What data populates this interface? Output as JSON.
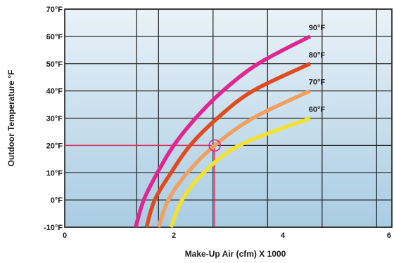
{
  "chart_data": {
    "type": "line",
    "title": "",
    "xlabel": "Make-Up Air (cfm) X 1000",
    "ylabel": "Outdoor Temperature °F",
    "xlim": [
      0,
      6
    ],
    "ylim": [
      -10,
      70
    ],
    "x_ticks": [
      0,
      2,
      4,
      6
    ],
    "x_tick_labels": [
      "0",
      "2",
      "4",
      "6"
    ],
    "x_minor_gridlines": [
      1.32,
      1.72,
      2.72,
      3.72,
      4.72,
      5.72
    ],
    "y_ticks": [
      -10,
      0,
      10,
      20,
      30,
      40,
      50,
      60,
      70
    ],
    "y_tick_labels": [
      "-10°F",
      "0°F",
      "10°F",
      "20°F",
      "30°F",
      "40°F",
      "50°F",
      "60°F",
      "70°F"
    ],
    "grid": true,
    "background": {
      "top": "#e9f2f8",
      "bottom": "#a9cce3"
    },
    "series": [
      {
        "name": "90°F",
        "color": "#e0268f",
        "points": [
          [
            1.3,
            -10
          ],
          [
            1.45,
            0
          ],
          [
            1.7,
            10
          ],
          [
            2.0,
            20
          ],
          [
            2.4,
            30
          ],
          [
            2.9,
            40
          ],
          [
            3.55,
            50
          ],
          [
            4.5,
            60
          ]
        ]
      },
      {
        "name": "80°F",
        "color": "#e04a1e",
        "points": [
          [
            1.5,
            -10
          ],
          [
            1.65,
            0
          ],
          [
            1.95,
            10
          ],
          [
            2.3,
            20
          ],
          [
            2.8,
            30
          ],
          [
            3.45,
            40
          ],
          [
            4.5,
            50
          ]
        ]
      },
      {
        "name": "70°F",
        "color": "#f0a060",
        "points": [
          [
            1.72,
            -10
          ],
          [
            1.9,
            0
          ],
          [
            2.25,
            10
          ],
          [
            2.75,
            20
          ],
          [
            3.45,
            30
          ],
          [
            4.5,
            40
          ]
        ]
      },
      {
        "name": "60°F",
        "color": "#f4e030",
        "points": [
          [
            1.95,
            -10
          ],
          [
            2.15,
            0
          ],
          [
            2.55,
            10
          ],
          [
            3.2,
            20
          ],
          [
            4.5,
            30
          ]
        ]
      }
    ],
    "annotations": {
      "highlight_point": {
        "x": 2.75,
        "y": 20,
        "color": "#e0268f"
      },
      "reference_lines_color": "#d6325a"
    }
  }
}
